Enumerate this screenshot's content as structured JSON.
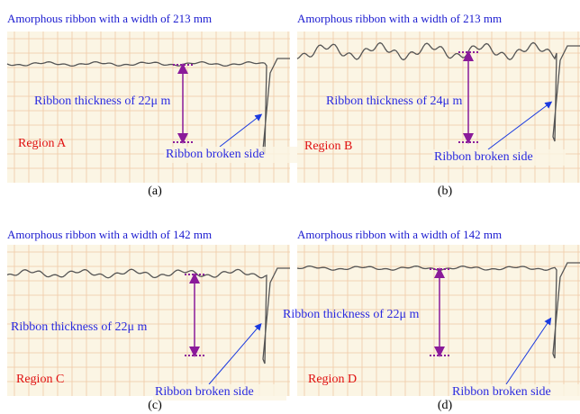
{
  "panels": [
    {
      "title": "Amorphous ribbon with a width of 213 mm",
      "thickness": "Ribbon thickness of 22μ  m",
      "region": "Region A",
      "broken": "Ribbon broken side",
      "caption": "(a)"
    },
    {
      "title": "Amorphous ribbon with a width of 213 mm",
      "thickness": "Ribbon thickness of 24μ  m",
      "region": "Region B",
      "broken": "Ribbon broken side",
      "caption": "(b)"
    },
    {
      "title": "Amorphous ribbon with a width of 142 mm",
      "thickness": "Ribbon thickness of 22μ  m",
      "region": "Region C",
      "broken": "Ribbon broken side",
      "caption": "(c)"
    },
    {
      "title": "Amorphous ribbon with a width of 142 mm",
      "thickness": "Ribbon thickness of 22μ  m",
      "region": "Region D",
      "broken": "Ribbon broken side",
      "caption": "(d)"
    }
  ]
}
